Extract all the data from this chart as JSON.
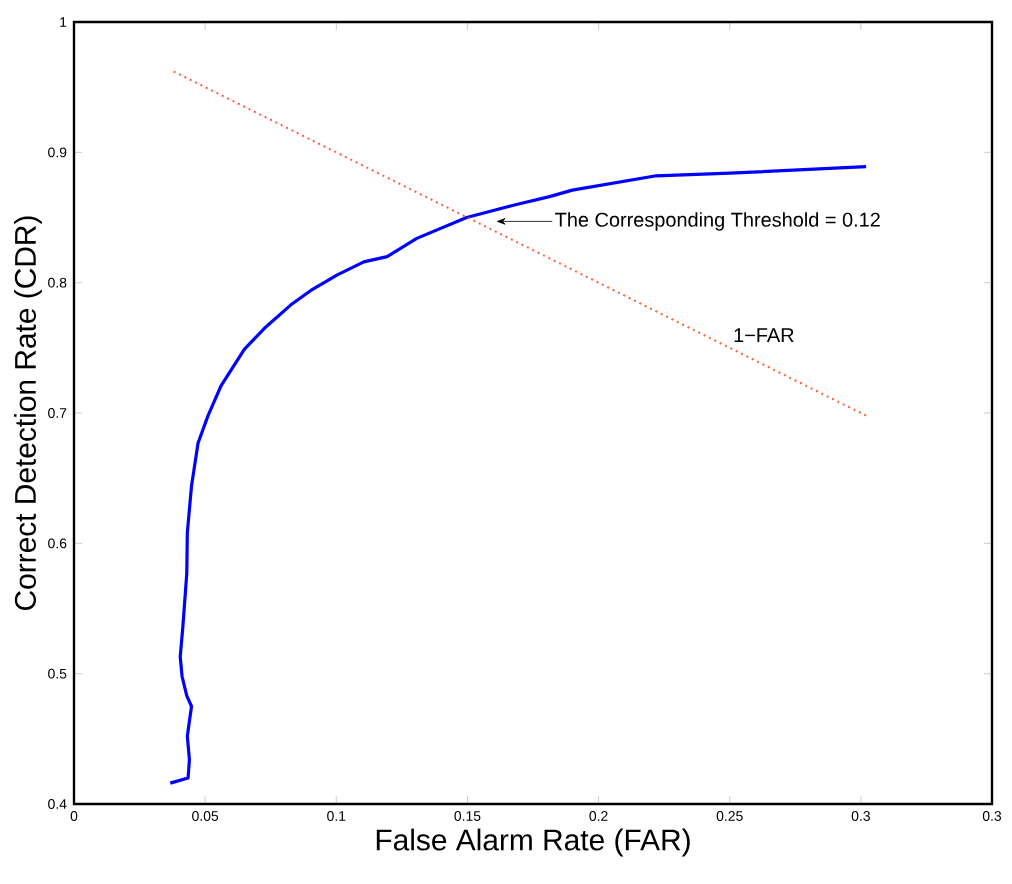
{
  "chart_data": {
    "type": "line",
    "xlabel": "False Alarm Rate (FAR)",
    "ylabel": "Correct Detection Rate (CDR)",
    "xlim": [
      0,
      0.35
    ],
    "ylim": [
      0.4,
      1
    ],
    "xticks": [
      0,
      0.05,
      0.1,
      0.15,
      0.2,
      0.25,
      0.3,
      {
        "value": 0.35,
        "label": "0.3"
      }
    ],
    "yticks": [
      0.4,
      0.5,
      0.6,
      0.7,
      0.8,
      0.9,
      1
    ],
    "marker": "none",
    "series": [
      {
        "color": "#0000ff",
        "line_style": "solid",
        "x": [
          0.0367,
          0.0435,
          0.044,
          0.0432,
          0.0448,
          0.043,
          0.0412,
          0.0405,
          0.0415,
          0.043,
          0.0432,
          0.0448,
          0.0473,
          0.0511,
          0.0561,
          0.065,
          0.0726,
          0.0827,
          0.0903,
          0.1004,
          0.1105,
          0.1194,
          0.1307,
          0.1497,
          0.1687,
          0.1813,
          0.19,
          0.222,
          0.25,
          0.302
        ],
        "values": [
          0.416,
          0.42,
          0.434,
          0.452,
          0.475,
          0.483,
          0.498,
          0.513,
          0.536,
          0.577,
          0.608,
          0.644,
          0.677,
          0.698,
          0.721,
          0.749,
          0.765,
          0.783,
          0.794,
          0.806,
          0.816,
          0.82,
          0.834,
          0.85,
          0.86,
          0.866,
          0.871,
          0.882,
          0.884,
          0.889
        ]
      },
      {
        "name": "1−FAR",
        "color": "#ff5a3c",
        "line_style": "dotted",
        "x": [
          0.038,
          0.302
        ],
        "values": [
          0.962,
          0.698
        ]
      }
    ],
    "annotations": [
      {
        "text": "The Corresponding Threshold = 0.12",
        "x": 0.161,
        "y": 0.847
      }
    ]
  }
}
